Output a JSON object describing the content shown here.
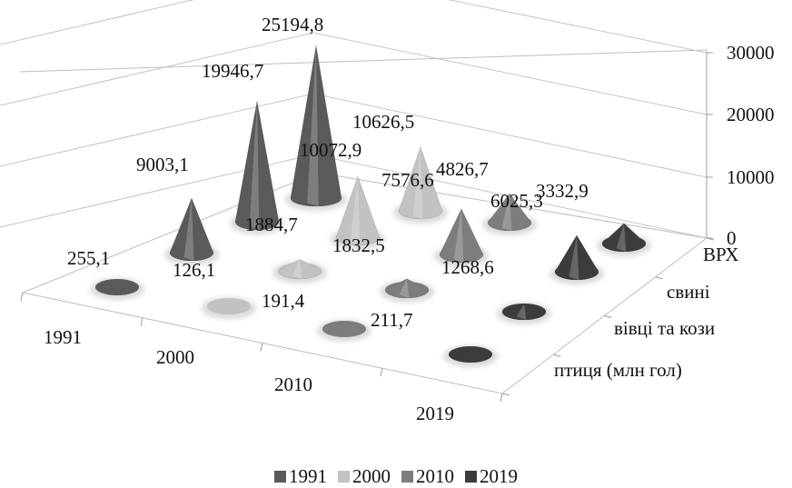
{
  "chart_data": {
    "type": "3d-cone",
    "title": "",
    "categories": [
      "ВРХ",
      "свині",
      "вівці та кози",
      "птиця (млн гол)"
    ],
    "series": [
      {
        "name": "1991",
        "values": [
          25194.8,
          19946.7,
          9003.1,
          255.1
        ],
        "color": "#5a5a5a"
      },
      {
        "name": "2000",
        "values": [
          10626.5,
          10072.9,
          1884.7,
          126.1
        ],
        "color": "#c2c2c2"
      },
      {
        "name": "2010",
        "values": [
          4826.7,
          7576.6,
          1832.5,
          191.4
        ],
        "color": "#7d7d7d"
      },
      {
        "name": "2019",
        "values": [
          3332.9,
          6025.3,
          1268.6,
          211.7
        ],
        "color": "#3c3c3c"
      }
    ],
    "zlim": [
      0,
      30000
    ],
    "z_ticks": [
      "0",
      "10000",
      "20000",
      "30000"
    ],
    "labels": [
      [
        "25194,8",
        "19946,7",
        "9003,1",
        "255,1"
      ],
      [
        "10626,5",
        "10072,9",
        "1884,7",
        "126,1"
      ],
      [
        "4826,7",
        "7576,6",
        "1832,5",
        "191,4"
      ],
      [
        "3332,9",
        "6025,3",
        "1268,6",
        "211,7"
      ]
    ],
    "legend_position": "bottom",
    "grid": true
  }
}
